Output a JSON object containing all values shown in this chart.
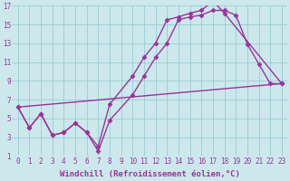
{
  "background_color": "#cce8ec",
  "grid_color": "#99ccd4",
  "line_color": "#993399",
  "xlim": [
    -0.5,
    23.5
  ],
  "ylim": [
    1,
    17
  ],
  "xticks": [
    0,
    1,
    2,
    3,
    4,
    5,
    6,
    7,
    8,
    9,
    10,
    11,
    12,
    13,
    14,
    15,
    16,
    17,
    18,
    19,
    20,
    21,
    22,
    23
  ],
  "yticks": [
    1,
    3,
    5,
    7,
    9,
    11,
    13,
    15,
    17
  ],
  "xlabel": "Windchill (Refroidissement éolien,°C)",
  "line1_x": [
    0,
    1,
    2,
    3,
    4,
    5,
    6,
    7,
    8,
    10,
    11,
    12,
    13,
    14,
    15,
    16,
    17,
    18,
    23
  ],
  "line1_y": [
    6.2,
    4.0,
    5.5,
    3.2,
    3.5,
    4.5,
    3.5,
    2.0,
    6.5,
    9.5,
    11.5,
    13.0,
    15.5,
    15.8,
    16.2,
    16.5,
    17.5,
    16.2,
    8.7
  ],
  "line2_x": [
    0,
    1,
    2,
    3,
    4,
    5,
    6,
    7,
    8,
    10,
    11,
    12,
    13,
    14,
    15,
    16,
    17,
    18,
    19,
    20,
    21,
    22,
    23
  ],
  "line2_y": [
    6.2,
    4.0,
    5.5,
    3.2,
    3.5,
    4.5,
    3.5,
    1.5,
    4.8,
    7.5,
    9.5,
    11.5,
    13.0,
    15.5,
    15.8,
    16.0,
    16.5,
    16.5,
    16.0,
    12.9,
    10.8,
    8.7,
    8.7
  ],
  "line3_x": [
    0,
    23
  ],
  "line3_y": [
    6.2,
    8.7
  ],
  "marker": "D",
  "markersize": 2.5,
  "linewidth": 1.0,
  "tick_fontsize": 5.5,
  "xlabel_fontsize": 6.5
}
